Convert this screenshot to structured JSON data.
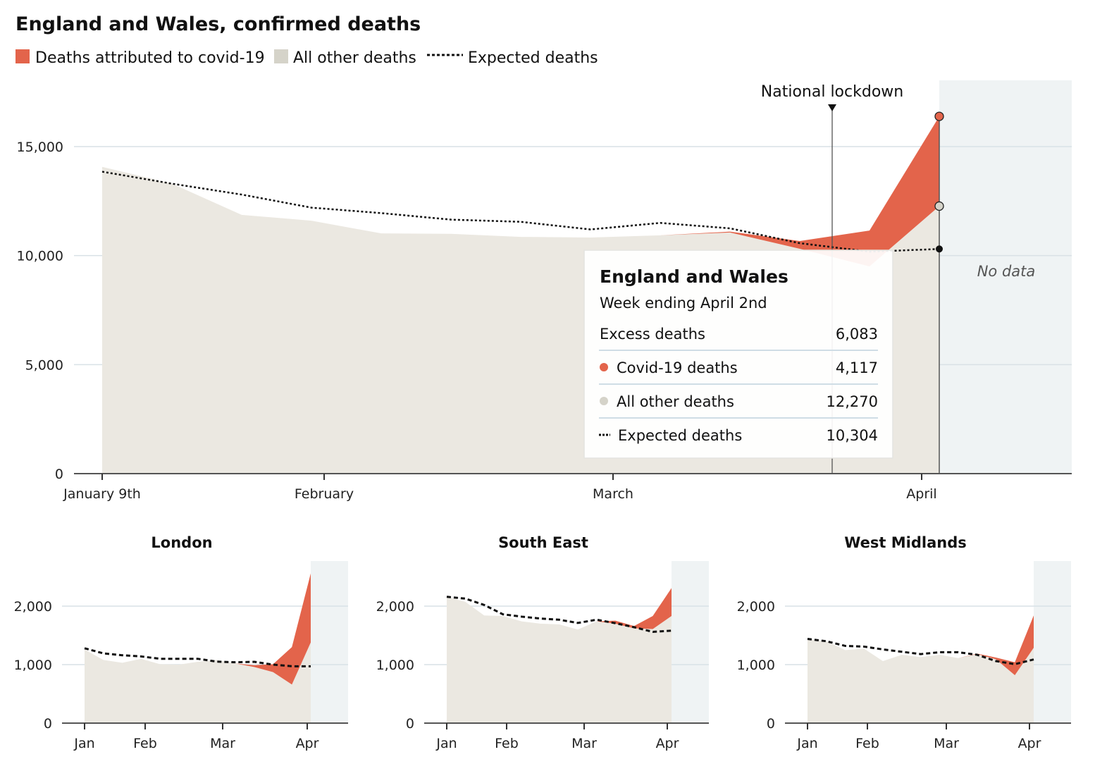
{
  "title": "England and Wales, confirmed deaths",
  "legend": [
    {
      "label": "Deaths attributed to covid-19",
      "color": "#e3644b",
      "kind": "swatch"
    },
    {
      "label": "All other deaths",
      "color": "#d5d3c9",
      "kind": "swatch"
    },
    {
      "label": "Expected deaths",
      "color": "#111111",
      "kind": "dotted-line"
    }
  ],
  "colors": {
    "covid": "#e3644b",
    "other": "#ebe8e1",
    "expected": "#111111",
    "no_data": "#eff3f4",
    "grid": "#d9e1e6"
  },
  "annotation": {
    "lockdown": "National lockdown",
    "no_data": "No data"
  },
  "tooltip": {
    "title": "England and Wales",
    "subtitle": "Week ending April 2nd",
    "rows": [
      {
        "label": "Excess deaths",
        "value": "6,083",
        "marker": "none"
      },
      {
        "label": "Covid-19 deaths",
        "value": "4,117",
        "marker": "red-dot"
      },
      {
        "label": "All other deaths",
        "value": "12,270",
        "marker": "grey-dot"
      },
      {
        "label": "Expected deaths",
        "value": "10,304",
        "marker": "dotted-line"
      }
    ]
  },
  "chart_data": [
    {
      "type": "area",
      "title": "England and Wales, confirmed deaths",
      "week_ending": [
        "Jan 9",
        "Jan 16",
        "Jan 23",
        "Jan 30",
        "Feb 6",
        "Feb 13",
        "Feb 20",
        "Feb 27",
        "Mar 5",
        "Mar 12",
        "Mar 19",
        "Mar 26",
        "Apr 2"
      ],
      "x_tick_labels": [
        "January 9th",
        "February",
        "March",
        "April"
      ],
      "y_tick_labels": [
        "0",
        "5,000",
        "10,000",
        "15,000"
      ],
      "ylim": [
        0,
        17000
      ],
      "grid": true,
      "series": [
        {
          "name": "All other deaths",
          "values": [
            14070,
            13300,
            11870,
            11600,
            11020,
            11000,
            10860,
            10830,
            10930,
            11060,
            10313,
            9505,
            12270
          ]
        },
        {
          "name": "Deaths attributed to covid-19",
          "values": [
            0,
            0,
            0,
            0,
            0,
            0,
            0,
            0,
            0,
            40,
            357,
            1645,
            4117
          ]
        },
        {
          "name": "Expected deaths",
          "values": [
            13850,
            13300,
            12800,
            12200,
            11950,
            11650,
            11550,
            11200,
            11500,
            11250,
            10570,
            10180,
            10304
          ]
        }
      ]
    },
    {
      "type": "area",
      "title": "London",
      "x_tick_labels": [
        "Jan",
        "Feb",
        "Mar",
        "Apr"
      ],
      "y_tick_labels": [
        "0",
        "1,000",
        "2,000"
      ],
      "ylim": [
        0,
        2800
      ],
      "grid": true,
      "series": [
        {
          "name": "All other deaths",
          "values": [
            1260,
            1080,
            1032,
            1100,
            1008,
            1000,
            1048,
            1080,
            1020,
            960,
            872,
            660,
            1380
          ]
        },
        {
          "name": "Deaths attributed to covid-19",
          "values": [
            0,
            0,
            0,
            0,
            0,
            0,
            0,
            0,
            0,
            30,
            136,
            640,
            1180
          ]
        },
        {
          "name": "Expected deaths",
          "values": [
            1280,
            1192,
            1160,
            1140,
            1100,
            1100,
            1100,
            1052,
            1040,
            1048,
            1000,
            972,
            972
          ]
        }
      ]
    },
    {
      "type": "area",
      "title": "South East",
      "x_tick_labels": [
        "Jan",
        "Feb",
        "Mar",
        "Apr"
      ],
      "y_tick_labels": [
        "0",
        "1,000",
        "2,000"
      ],
      "ylim": [
        0,
        2800
      ],
      "grid": true,
      "series": [
        {
          "name": "All other deaths",
          "values": [
            2160,
            2072,
            1840,
            1832,
            1740,
            1700,
            1688,
            1600,
            1740,
            1700,
            1620,
            1608,
            1832
          ]
        },
        {
          "name": "Deaths attributed to covid-19",
          "values": [
            0,
            0,
            0,
            0,
            0,
            0,
            0,
            0,
            0,
            52,
            40,
            224,
            476
          ]
        },
        {
          "name": "Expected deaths",
          "values": [
            2160,
            2128,
            2020,
            1860,
            1820,
            1788,
            1768,
            1712,
            1768,
            1708,
            1640,
            1560,
            1580
          ]
        }
      ]
    },
    {
      "type": "area",
      "title": "West Midlands",
      "x_tick_labels": [
        "Jan",
        "Feb",
        "Mar",
        "Apr"
      ],
      "y_tick_labels": [
        "0",
        "1,000",
        "2,000"
      ],
      "ylim": [
        0,
        2800
      ],
      "grid": true,
      "series": [
        {
          "name": "All other deaths",
          "values": [
            1440,
            1400,
            1248,
            1272,
            1060,
            1168,
            1128,
            1168,
            1112,
            1180,
            1090,
            820,
            1288
          ]
        },
        {
          "name": "Deaths attributed to covid-19",
          "values": [
            0,
            0,
            0,
            0,
            0,
            0,
            0,
            0,
            0,
            8,
            30,
            220,
            552
          ]
        },
        {
          "name": "Expected deaths",
          "values": [
            1440,
            1400,
            1320,
            1308,
            1260,
            1220,
            1180,
            1212,
            1212,
            1168,
            1060,
            1008,
            1088
          ]
        }
      ]
    }
  ]
}
